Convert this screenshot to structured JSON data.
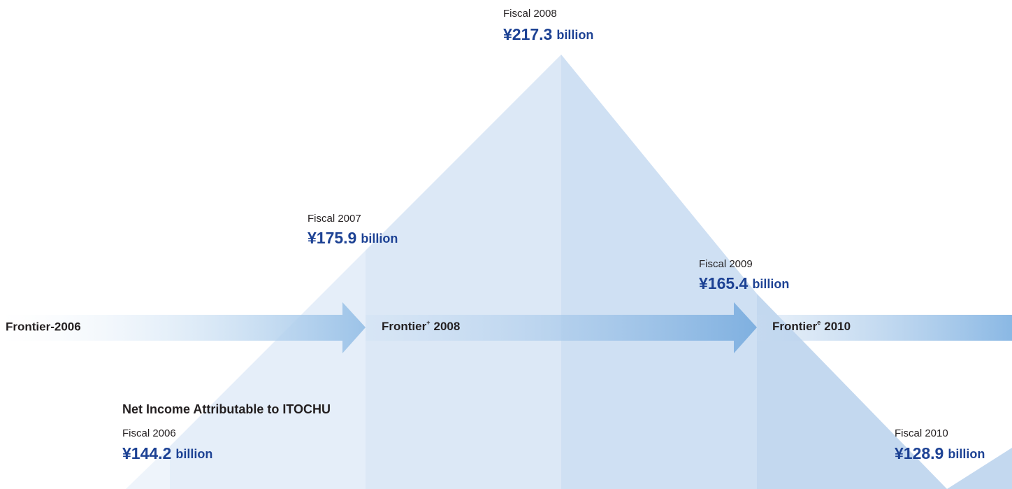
{
  "title": "Net Income Attributable to ITOCHU",
  "results": [
    {
      "period": "Fiscal 2006",
      "amount": "¥144.2",
      "unit": "billion"
    },
    {
      "period": "Fiscal 2007",
      "amount": "¥175.9",
      "unit": "billion"
    },
    {
      "period": "Fiscal 2008",
      "amount": "¥217.3",
      "unit": "billion"
    },
    {
      "period": "Fiscal 2009",
      "amount": "¥165.4",
      "unit": "billion"
    },
    {
      "period": "Fiscal 2010",
      "amount": "¥128.9",
      "unit": "billion"
    }
  ],
  "plans": [
    {
      "name": "Frontier-2006"
    },
    {
      "name": "Frontier",
      "sup": "+",
      "year": "2008"
    },
    {
      "name": "Frontier",
      "sup": "e",
      "year": "2010"
    }
  ]
}
